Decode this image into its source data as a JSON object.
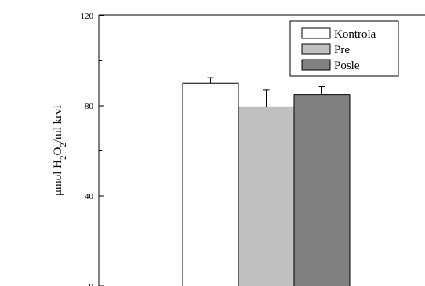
{
  "chart_data": {
    "type": "bar",
    "title": "",
    "xlabel": "",
    "ylabel": {
      "part1": "μmol H",
      "sub1": "2",
      "part2": "O",
      "sub2": "2",
      "part3": "/ml krvi"
    },
    "ylim": [
      0,
      120
    ],
    "yticks": [
      0,
      40,
      80,
      120
    ],
    "grid": false,
    "legend_position": "top-right",
    "series": [
      {
        "name": "Kontrola",
        "value": 90,
        "error": 2.5,
        "color": "#ffffff"
      },
      {
        "name": "Pre",
        "value": 79.5,
        "error": 7.5,
        "color": "#c0c0c0"
      },
      {
        "name": "Posle",
        "value": 85,
        "error": 3.5,
        "color": "#808080"
      }
    ]
  }
}
